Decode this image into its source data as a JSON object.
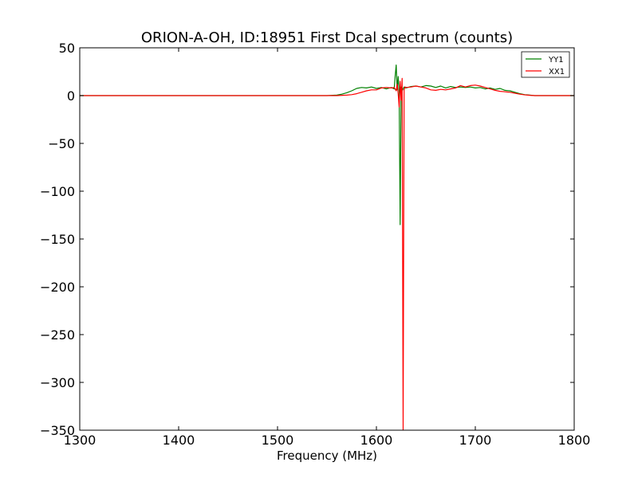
{
  "chart_data": {
    "type": "line",
    "title": "ORION-A-OH, ID:18951 First Dcal spectrum (counts)",
    "xlabel": "Frequency (MHz)",
    "ylabel": "",
    "xlim": [
      1300,
      1800
    ],
    "ylim": [
      -350,
      50
    ],
    "xticks": [
      1300,
      1400,
      1500,
      1600,
      1700,
      1800
    ],
    "yticks": [
      50,
      0,
      -50,
      -100,
      -150,
      -200,
      -250,
      -300,
      -350
    ],
    "xtick_labels": [
      "1300",
      "1400",
      "1500",
      "1600",
      "1700",
      "1800"
    ],
    "ytick_labels": [
      "50",
      "0",
      "−50",
      "−100",
      "−150",
      "−200",
      "−250",
      "−300",
      "−350"
    ],
    "grid": false,
    "legend_position": "top-right",
    "series": [
      {
        "name": "YY1",
        "color": "#008000",
        "points": [
          [
            1300,
            0
          ],
          [
            1550,
            0
          ],
          [
            1560,
            0.5
          ],
          [
            1565,
            1.5
          ],
          [
            1570,
            3
          ],
          [
            1575,
            5
          ],
          [
            1580,
            7.5
          ],
          [
            1585,
            8.5
          ],
          [
            1590,
            8
          ],
          [
            1595,
            9
          ],
          [
            1600,
            7.5
          ],
          [
            1605,
            8.5
          ],
          [
            1610,
            7
          ],
          [
            1615,
            8.5
          ],
          [
            1618,
            7
          ],
          [
            1619,
            21
          ],
          [
            1620,
            32
          ],
          [
            1621,
            6
          ],
          [
            1622,
            20
          ],
          [
            1623,
            4
          ],
          [
            1624,
            -135
          ],
          [
            1625,
            9
          ],
          [
            1626,
            5
          ],
          [
            1628,
            9
          ],
          [
            1630,
            8
          ],
          [
            1635,
            9.5
          ],
          [
            1640,
            10
          ],
          [
            1645,
            9
          ],
          [
            1650,
            10.5
          ],
          [
            1655,
            10
          ],
          [
            1660,
            8.5
          ],
          [
            1665,
            10
          ],
          [
            1670,
            8
          ],
          [
            1675,
            9.5
          ],
          [
            1680,
            8.5
          ],
          [
            1685,
            9
          ],
          [
            1690,
            8.5
          ],
          [
            1695,
            9
          ],
          [
            1700,
            8
          ],
          [
            1705,
            8.5
          ],
          [
            1710,
            7
          ],
          [
            1715,
            8
          ],
          [
            1720,
            6.5
          ],
          [
            1725,
            7.5
          ],
          [
            1730,
            5.5
          ],
          [
            1735,
            5
          ],
          [
            1740,
            3.5
          ],
          [
            1745,
            2
          ],
          [
            1750,
            1
          ],
          [
            1755,
            0.5
          ],
          [
            1760,
            0
          ],
          [
            1800,
            0
          ]
        ]
      },
      {
        "name": "XX1",
        "color": "#ff0000",
        "points": [
          [
            1300,
            0
          ],
          [
            1560,
            0
          ],
          [
            1570,
            0.5
          ],
          [
            1575,
            1
          ],
          [
            1580,
            2
          ],
          [
            1585,
            3.5
          ],
          [
            1590,
            5
          ],
          [
            1595,
            6
          ],
          [
            1600,
            6
          ],
          [
            1605,
            8
          ],
          [
            1610,
            8.5
          ],
          [
            1615,
            8
          ],
          [
            1618,
            8.5
          ],
          [
            1620,
            5
          ],
          [
            1621,
            12
          ],
          [
            1622,
            2
          ],
          [
            1623,
            -12
          ],
          [
            1624,
            15
          ],
          [
            1625,
            -5
          ],
          [
            1626,
            18
          ],
          [
            1627,
            -350
          ],
          [
            1628,
            6
          ],
          [
            1629,
            9
          ],
          [
            1630,
            8.5
          ],
          [
            1635,
            9
          ],
          [
            1640,
            10
          ],
          [
            1645,
            9
          ],
          [
            1650,
            8
          ],
          [
            1655,
            6
          ],
          [
            1660,
            5.5
          ],
          [
            1665,
            6.5
          ],
          [
            1670,
            6
          ],
          [
            1675,
            7
          ],
          [
            1680,
            8
          ],
          [
            1685,
            10.5
          ],
          [
            1690,
            9
          ],
          [
            1695,
            10.5
          ],
          [
            1700,
            11
          ],
          [
            1705,
            10
          ],
          [
            1710,
            8.5
          ],
          [
            1715,
            7
          ],
          [
            1720,
            5.5
          ],
          [
            1725,
            4.5
          ],
          [
            1730,
            4
          ],
          [
            1735,
            3.5
          ],
          [
            1740,
            2.5
          ],
          [
            1745,
            1.5
          ],
          [
            1750,
            0.8
          ],
          [
            1755,
            0.3
          ],
          [
            1760,
            0
          ],
          [
            1800,
            0
          ]
        ]
      }
    ]
  }
}
